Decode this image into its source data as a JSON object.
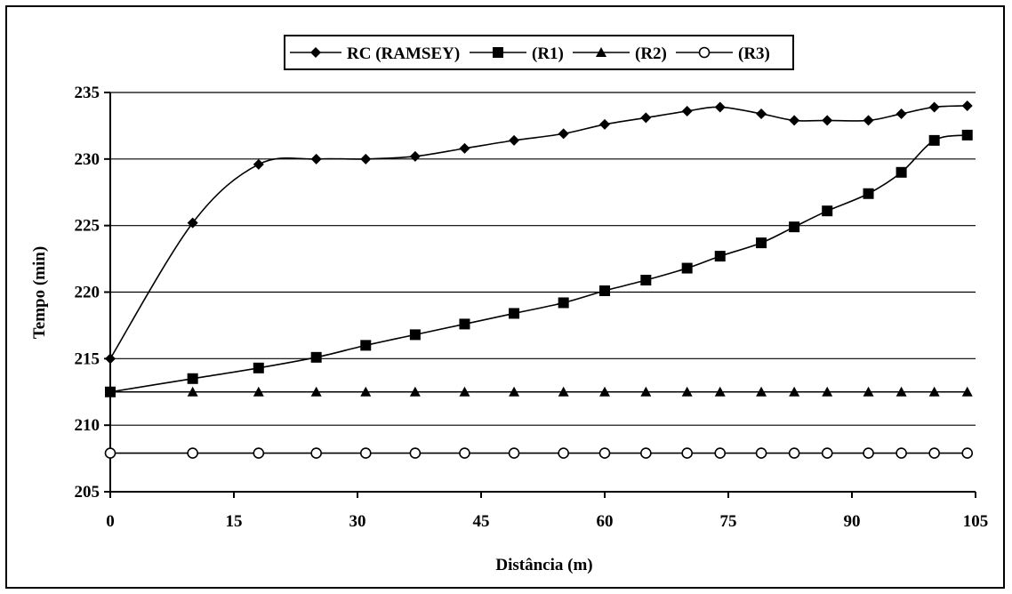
{
  "chart_data": {
    "type": "line",
    "title": "",
    "xlabel": "Distância (m)",
    "ylabel": "Tempo (min)",
    "xlim": [
      0,
      105
    ],
    "ylim": [
      205,
      235
    ],
    "xticks": [
      "0",
      "15",
      "30",
      "45",
      "60",
      "75",
      "90",
      "105"
    ],
    "yticks": [
      "205",
      "210",
      "215",
      "220",
      "225",
      "230",
      "235"
    ],
    "grid": "horizontal",
    "legend_position": "top",
    "series": [
      {
        "name": "RC (RAMSEY)",
        "marker": "diamond",
        "color": "#000000",
        "x": [
          0,
          10,
          18,
          25,
          31,
          37,
          43,
          49,
          55,
          60,
          65,
          70,
          74,
          79,
          83,
          87,
          92,
          96,
          100,
          104
        ],
        "y": [
          215,
          225.2,
          229.6,
          230,
          230,
          230.2,
          230.8,
          231.4,
          231.9,
          232.6,
          233.1,
          233.6,
          233.9,
          233.4,
          232.9,
          232.9,
          232.9,
          233.4,
          233.9,
          234
        ]
      },
      {
        "name": "(R1)",
        "marker": "square",
        "color": "#000000",
        "x": [
          0,
          10,
          18,
          25,
          31,
          37,
          43,
          49,
          55,
          60,
          65,
          70,
          74,
          79,
          83,
          87,
          92,
          96,
          100,
          104
        ],
        "y": [
          212.5,
          213.5,
          214.3,
          215.1,
          216,
          216.8,
          217.6,
          218.4,
          219.2,
          220.1,
          220.9,
          221.8,
          222.7,
          223.7,
          224.9,
          226.1,
          227.4,
          229,
          231.4,
          231.8
        ]
      },
      {
        "name": "(R2)",
        "marker": "triangle",
        "color": "#000000",
        "x": [
          0,
          10,
          18,
          25,
          31,
          37,
          43,
          49,
          55,
          60,
          65,
          70,
          74,
          79,
          83,
          87,
          92,
          96,
          100,
          104
        ],
        "y": [
          212.5,
          212.5,
          212.5,
          212.5,
          212.5,
          212.5,
          212.5,
          212.5,
          212.5,
          212.5,
          212.5,
          212.5,
          212.5,
          212.5,
          212.5,
          212.5,
          212.5,
          212.5,
          212.5,
          212.5
        ]
      },
      {
        "name": "(R3)",
        "marker": "circle-open",
        "color": "#000000",
        "x": [
          0,
          10,
          18,
          25,
          31,
          37,
          43,
          49,
          55,
          60,
          65,
          70,
          74,
          79,
          83,
          87,
          92,
          96,
          100,
          104
        ],
        "y": [
          207.9,
          207.9,
          207.9,
          207.9,
          207.9,
          207.9,
          207.9,
          207.9,
          207.9,
          207.9,
          207.9,
          207.9,
          207.9,
          207.9,
          207.9,
          207.9,
          207.9,
          207.9,
          207.9,
          207.9
        ]
      }
    ]
  }
}
